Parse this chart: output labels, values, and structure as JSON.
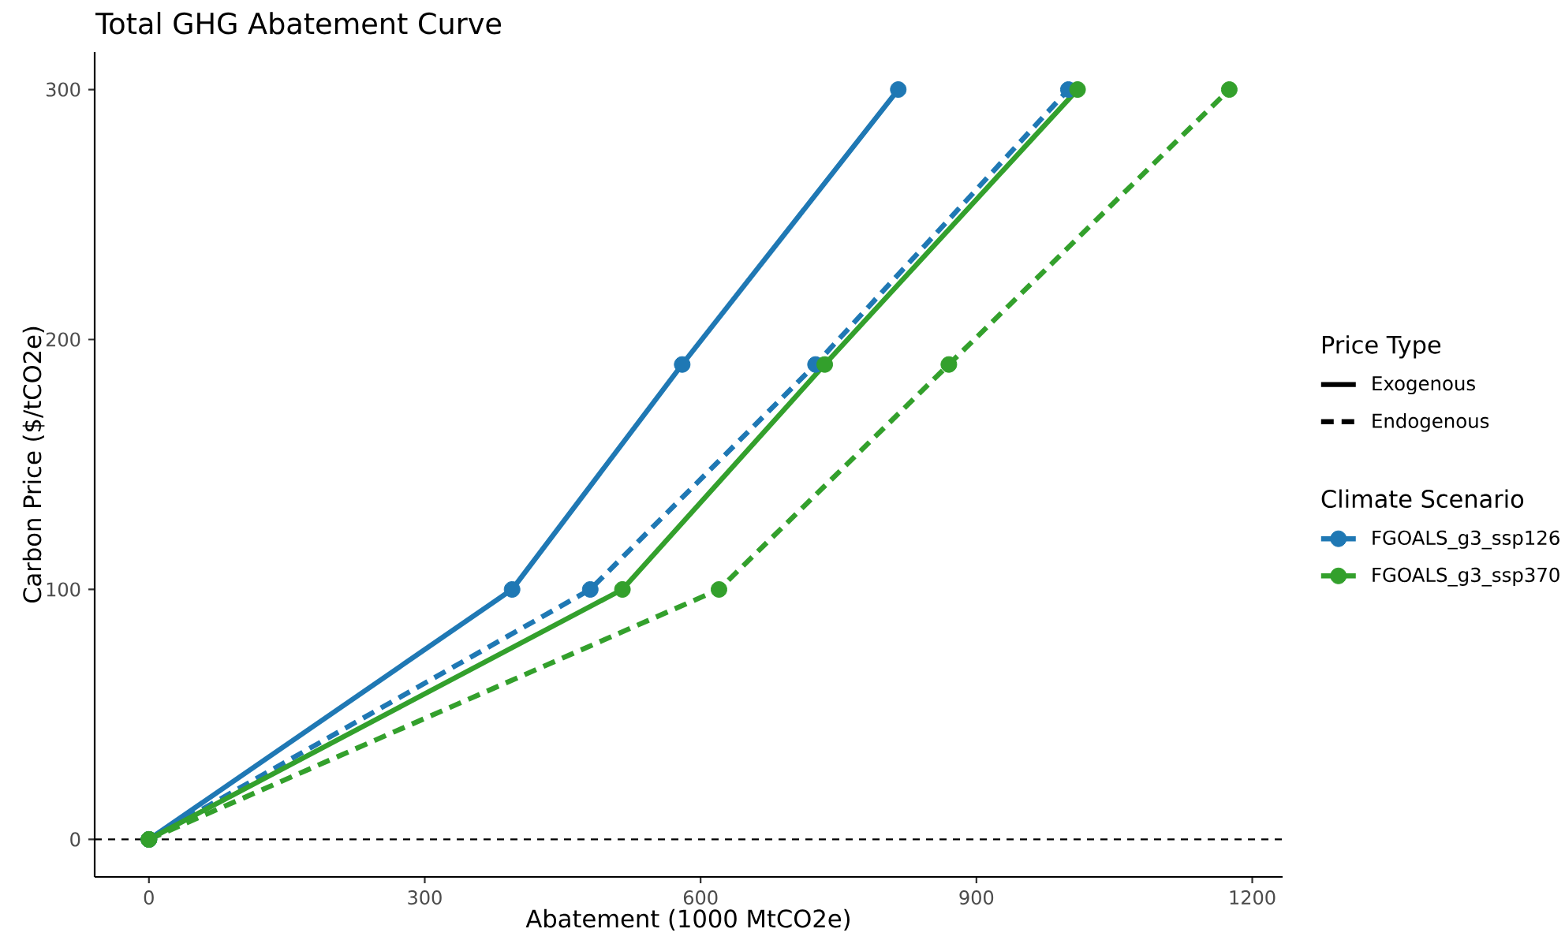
{
  "chart_data": {
    "type": "line",
    "title": "Total GHG Abatement Curve",
    "xlabel": "Abatement (1000 MtCO2e)",
    "ylabel": "Carbon Price ($/tCO2e)",
    "legend_title": "Climate Scenario",
    "annotations": [
      "Price Type",
      "Exogenous",
      "Endogenous"
    ],
    "series": [
      {
        "name": "FGOALS_g3_ssp126",
        "color": "#1f78b4",
        "line_style": "solid",
        "x": [
          0,
          395,
          580,
          815
        ],
        "values": [
          0,
          100,
          190,
          300
        ]
      },
      {
        "color": "#1f78b4",
        "line_style": "dashed",
        "x": [
          0,
          480,
          725,
          1000
        ],
        "values": [
          0,
          100,
          190,
          300
        ]
      },
      {
        "name": "FGOALS_g3_ssp370",
        "color": "#33a02c",
        "line_style": "solid",
        "x": [
          0,
          515,
          735,
          1010
        ],
        "values": [
          0,
          100,
          190,
          300
        ]
      },
      {
        "color": "#33a02c",
        "line_style": "dashed",
        "x": [
          0,
          620,
          870,
          1175
        ],
        "values": [
          0,
          100,
          190,
          300
        ]
      }
    ],
    "xlim": [
      -59,
      1233
    ],
    "ylim": [
      -15,
      315
    ],
    "xticks": [
      0,
      300,
      600,
      900,
      1200
    ],
    "yticks": [
      0,
      100,
      200,
      300
    ],
    "ref_lines": [
      {
        "axis": "y",
        "value": 0,
        "color": "#000000",
        "line_style": "dashed"
      }
    ],
    "marker": "circle",
    "legend": "right"
  }
}
